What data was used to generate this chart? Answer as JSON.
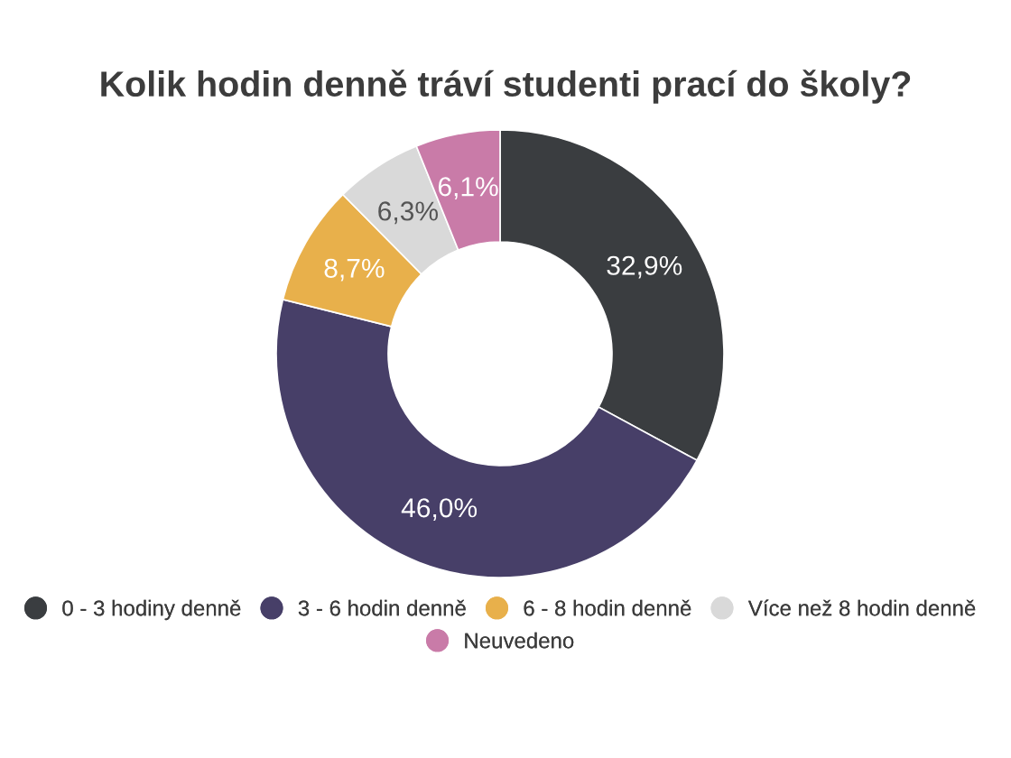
{
  "chart_data": {
    "type": "donut",
    "title": "Kolik hodin denně tráví studenti prací do školy?",
    "categories": [
      "0 - 3 hodiny denně",
      "3 - 6 hodin denně",
      "6 - 8 hodin denně",
      "Více než 8 hodin denně",
      "Neuvedeno"
    ],
    "values": [
      32.9,
      46.0,
      8.7,
      6.3,
      6.1
    ],
    "colors": [
      "#3a3d40",
      "#473f68",
      "#e8b04b",
      "#d9d9d9",
      "#c97ba8"
    ],
    "value_labels": [
      "32,9%",
      "46,0%",
      "8,7%",
      "6,3%",
      "6,1%"
    ],
    "legend": "bottom"
  }
}
